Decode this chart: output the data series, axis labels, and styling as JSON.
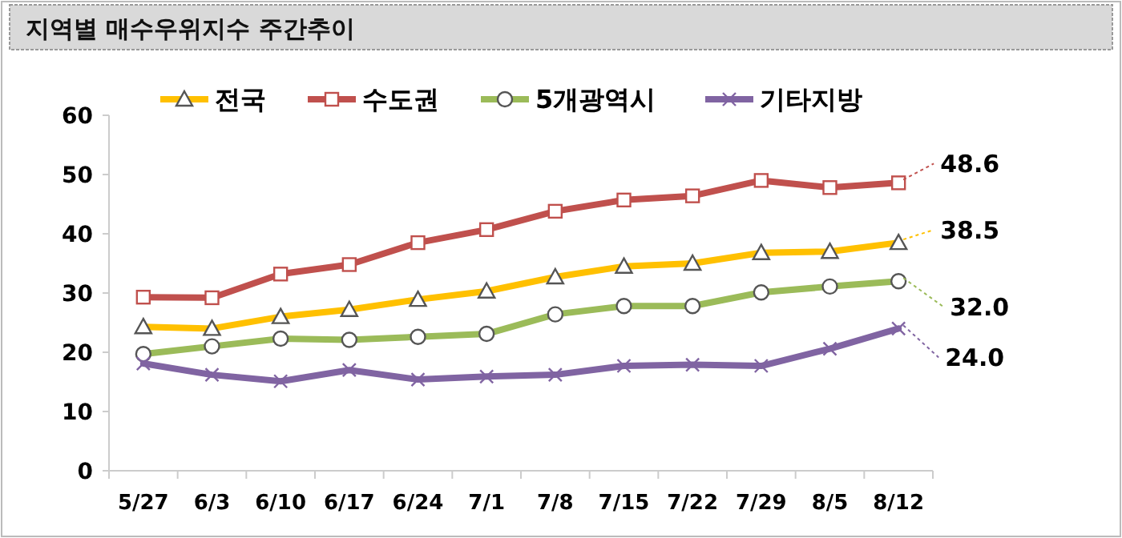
{
  "chart_data": {
    "type": "line",
    "title": "지역별 매수우위지수 주간추이",
    "categories": [
      "5/27",
      "6/3",
      "6/10",
      "6/17",
      "6/24",
      "7/1",
      "7/8",
      "7/15",
      "7/22",
      "7/29",
      "8/5",
      "8/12"
    ],
    "series": [
      {
        "name": "전국",
        "color": "#ffc000",
        "marker": "triangle",
        "values": [
          24.3,
          24.0,
          26.0,
          27.2,
          28.9,
          30.3,
          32.7,
          34.5,
          35.0,
          36.8,
          37.0,
          38.5
        ]
      },
      {
        "name": "수도권",
        "color": "#c0504d",
        "marker": "square",
        "values": [
          29.3,
          29.2,
          33.2,
          34.8,
          38.5,
          40.7,
          43.8,
          45.7,
          46.4,
          49.0,
          47.8,
          48.6
        ]
      },
      {
        "name": "5개광역시",
        "color": "#9bbb59",
        "marker": "circle",
        "values": [
          19.7,
          21.0,
          22.3,
          22.1,
          22.6,
          23.1,
          26.4,
          27.8,
          27.8,
          30.1,
          31.1,
          32.0
        ]
      },
      {
        "name": "기타지방",
        "color": "#8064a2",
        "marker": "cross",
        "values": [
          18.1,
          16.2,
          15.1,
          17.0,
          15.4,
          15.9,
          16.2,
          17.7,
          17.9,
          17.7,
          20.6,
          24.0
        ]
      }
    ],
    "annotations": [
      {
        "text": "48.6",
        "x": "8/12",
        "y": 48.6
      },
      {
        "text": "38.5",
        "x": "8/12",
        "y": 38.5
      },
      {
        "text": "32.0",
        "x": "8/12",
        "y": 32.0
      },
      {
        "text": "24.0",
        "x": "8/12",
        "y": 24.0
      }
    ],
    "ylim": [
      0,
      60
    ],
    "yticks": [
      0,
      10,
      20,
      30,
      40,
      50,
      60
    ],
    "grid": false,
    "legend": "top"
  }
}
